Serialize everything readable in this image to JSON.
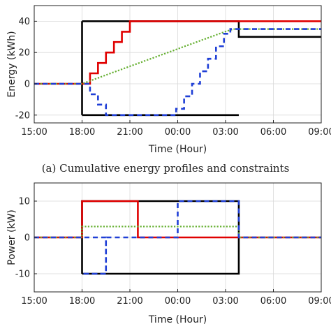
{
  "chart_data": [
    {
      "type": "line",
      "caption": "(a) Cumulative energy profiles and constraints",
      "xlabel": "Time (Hour)",
      "ylabel": "Energy (kWh)",
      "xlim": [
        0,
        18
      ],
      "ylim": [
        -25,
        50
      ],
      "xticks": [
        0,
        3,
        6,
        9,
        12,
        15,
        18
      ],
      "xtick_labels": [
        "15:00",
        "18:00",
        "21:00",
        "00:00",
        "03:00",
        "06:00",
        "09:00"
      ],
      "yticks": [
        -20,
        0,
        20,
        40
      ],
      "ytick_labels": [
        "-20",
        "0",
        "20",
        "40"
      ],
      "grid": true,
      "series": [
        {
          "color": "#000000",
          "style": "solid",
          "points": [
            [
              3,
              -20
            ],
            [
              3,
              40
            ],
            [
              12,
              40
            ],
            [
              12,
              40
            ],
            [
              18,
              40
            ],
            [
              18,
              40
            ]
          ],
          "points_note": "",
          "segments": [
            [
              [
                3,
                40
              ],
              [
                12.83,
                40
              ],
              [
                12.83,
                30
              ],
              [
                18,
                30
              ]
            ],
            [
              [
                3,
                -20
              ],
              [
                12.83,
                -20
              ]
            ],
            [
              [
                3,
                -20
              ],
              [
                3,
                40
              ]
            ]
          ]
        },
        {
          "color": "#e00000",
          "style": "solid",
          "segments": [
            [
              [
                0,
                0
              ],
              [
                3,
                0
              ],
              [
                3.5,
                0
              ],
              [
                3.5,
                6.7
              ],
              [
                4,
                6.7
              ],
              [
                4,
                13.3
              ],
              [
                4.5,
                13.3
              ],
              [
                4.5,
                20
              ],
              [
                5,
                20
              ],
              [
                5,
                26.7
              ],
              [
                5.5,
                26.7
              ],
              [
                5.5,
                33.3
              ],
              [
                6,
                33.3
              ],
              [
                6,
                40
              ],
              [
                18,
                40
              ]
            ]
          ]
        },
        {
          "color": "#66b032",
          "style": "dotted",
          "segments": [
            [
              [
                0,
                0
              ],
              [
                3,
                0
              ],
              [
                3.5,
                1.9
              ],
              [
                4,
                3.7
              ],
              [
                4.5,
                5.6
              ],
              [
                5,
                7.5
              ],
              [
                5.5,
                9.3
              ],
              [
                6,
                11.2
              ],
              [
                6.5,
                13
              ],
              [
                7,
                14.9
              ],
              [
                7.5,
                16.7
              ],
              [
                8,
                18.6
              ],
              [
                8.5,
                20.4
              ],
              [
                9,
                22.3
              ],
              [
                9.5,
                24.2
              ],
              [
                10,
                26
              ],
              [
                10.5,
                27.9
              ],
              [
                11,
                29.7
              ],
              [
                11.5,
                31.6
              ],
              [
                12,
                33.4
              ],
              [
                12.5,
                35
              ],
              [
                18,
                35
              ]
            ]
          ]
        },
        {
          "color": "#1f3fd6",
          "style": "dashed",
          "segments": [
            [
              [
                0,
                0
              ],
              [
                3,
                0
              ],
              [
                3.5,
                0
              ],
              [
                3.5,
                -6.7
              ],
              [
                4,
                -6.7
              ],
              [
                4,
                -13.3
              ],
              [
                4.5,
                -13.3
              ],
              [
                4.5,
                -20
              ],
              [
                8.9,
                -20
              ],
              [
                8.9,
                -16
              ],
              [
                9.4,
                -16
              ],
              [
                9.4,
                -8
              ],
              [
                9.9,
                -8
              ],
              [
                9.9,
                0
              ],
              [
                10.4,
                0
              ],
              [
                10.4,
                8
              ],
              [
                10.9,
                8
              ],
              [
                10.9,
                16
              ],
              [
                11.4,
                16
              ],
              [
                11.4,
                24
              ],
              [
                11.9,
                24
              ],
              [
                11.9,
                32
              ],
              [
                12.3,
                32
              ],
              [
                12.3,
                35
              ],
              [
                18,
                35
              ]
            ]
          ]
        }
      ]
    },
    {
      "type": "line",
      "caption": "",
      "xlabel": "Time (Hour)",
      "ylabel": "Power (kW)",
      "xlim": [
        0,
        18
      ],
      "ylim": [
        -15,
        15
      ],
      "xticks": [
        0,
        3,
        6,
        9,
        12,
        15,
        18
      ],
      "xtick_labels": [
        "15:00",
        "18:00",
        "21:00",
        "00:00",
        "03:00",
        "06:00",
        "09:00"
      ],
      "yticks": [
        -10,
        0,
        10
      ],
      "ytick_labels": [
        "-10",
        "0",
        "10"
      ],
      "grid": true,
      "series": [
        {
          "color": "#000000",
          "style": "solid",
          "segments": [
            [
              [
                3,
                -10
              ],
              [
                3,
                10
              ],
              [
                12.83,
                10
              ],
              [
                12.83,
                -10
              ],
              [
                3,
                -10
              ]
            ]
          ]
        },
        {
          "color": "#e00000",
          "style": "solid",
          "segments": [
            [
              [
                0,
                0
              ],
              [
                3,
                0
              ],
              [
                3,
                10
              ],
              [
                6.5,
                10
              ],
              [
                6.5,
                0
              ],
              [
                18,
                0
              ]
            ]
          ]
        },
        {
          "color": "#66b032",
          "style": "dotted",
          "segments": [
            [
              [
                0,
                0
              ],
              [
                3,
                0
              ],
              [
                3,
                3
              ],
              [
                12.83,
                3
              ],
              [
                12.83,
                0
              ],
              [
                18,
                0
              ]
            ]
          ]
        },
        {
          "color": "#1f3fd6",
          "style": "dashed",
          "segments": [
            [
              [
                0,
                0
              ],
              [
                3,
                0
              ],
              [
                3,
                0
              ],
              [
                4.5,
                0
              ],
              [
                4.5,
                -10
              ],
              [
                3,
                -10
              ],
              [
                4.5,
                -10
              ],
              [
                4.5,
                0
              ],
              [
                9,
                0
              ],
              [
                9,
                10
              ],
              [
                12.83,
                10
              ],
              [
                12.83,
                0
              ],
              [
                18,
                0
              ]
            ]
          ]
        }
      ]
    }
  ]
}
